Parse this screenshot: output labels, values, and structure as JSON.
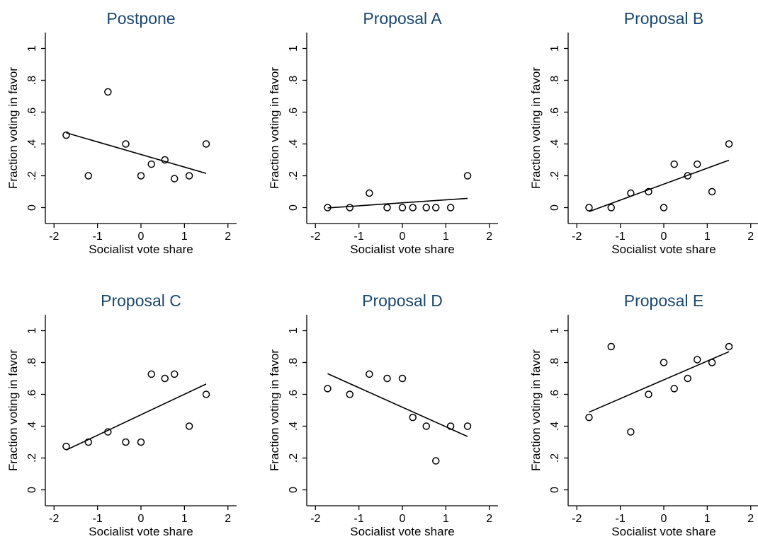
{
  "colors": {
    "title": "#1a476f",
    "marks": "#000000",
    "background": "#ffffff"
  },
  "chart_data": [
    {
      "type": "scatter",
      "title": "Postpone",
      "xlabel": "Socialist vote share",
      "ylabel": "Fraction voting in favor",
      "xlim": [
        -2,
        2
      ],
      "ylim": [
        0,
        1
      ],
      "x_ticks": [
        "-2",
        "-1",
        "0",
        "1",
        "2"
      ],
      "y_ticks": [
        "0",
        ".2",
        ".4",
        ".6",
        ".8",
        "1"
      ],
      "points": [
        [
          -1.72,
          0.455
        ],
        [
          -1.21,
          0.2
        ],
        [
          -0.76,
          0.727
        ],
        [
          -0.35,
          0.4
        ],
        [
          0.0,
          0.2
        ],
        [
          0.24,
          0.273
        ],
        [
          0.55,
          0.3
        ],
        [
          0.77,
          0.182
        ],
        [
          1.11,
          0.2
        ],
        [
          1.5,
          0.4
        ]
      ],
      "fit_line": [
        [
          -1.72,
          0.47
        ],
        [
          1.5,
          0.215
        ]
      ]
    },
    {
      "type": "scatter",
      "title": "Proposal A",
      "xlabel": "Socialist vote share",
      "ylabel": "Fraction voting in favor",
      "xlim": [
        -2,
        2
      ],
      "ylim": [
        0,
        1
      ],
      "x_ticks": [
        "-2",
        "-1",
        "0",
        "1",
        "2"
      ],
      "y_ticks": [
        "0",
        ".2",
        ".4",
        ".6",
        ".8",
        "1"
      ],
      "points": [
        [
          -1.72,
          0.0
        ],
        [
          -1.21,
          0.0
        ],
        [
          -0.76,
          0.091
        ],
        [
          -0.35,
          0.0
        ],
        [
          0.0,
          0.0
        ],
        [
          0.24,
          0.0
        ],
        [
          0.55,
          0.0
        ],
        [
          0.77,
          0.0
        ],
        [
          1.11,
          0.0
        ],
        [
          1.5,
          0.2
        ]
      ],
      "fit_line": [
        [
          -1.72,
          -0.002
        ],
        [
          1.5,
          0.058
        ]
      ]
    },
    {
      "type": "scatter",
      "title": "Proposal B",
      "xlabel": "Socialist vote share",
      "ylabel": "Fraction voting in favor",
      "xlim": [
        -2,
        2
      ],
      "ylim": [
        0,
        1
      ],
      "x_ticks": [
        "-2",
        "-1",
        "0",
        "1",
        "2"
      ],
      "y_ticks": [
        "0",
        ".2",
        ".4",
        ".6",
        ".8",
        "1"
      ],
      "points": [
        [
          -1.72,
          0.0
        ],
        [
          -1.21,
          0.0
        ],
        [
          -0.76,
          0.091
        ],
        [
          -0.35,
          0.1
        ],
        [
          0.0,
          0.0
        ],
        [
          0.24,
          0.273
        ],
        [
          0.55,
          0.2
        ],
        [
          0.77,
          0.273
        ],
        [
          1.11,
          0.1
        ],
        [
          1.5,
          0.4
        ]
      ],
      "fit_line": [
        [
          -1.72,
          -0.025
        ],
        [
          1.5,
          0.298
        ]
      ]
    },
    {
      "type": "scatter",
      "title": "Proposal C",
      "xlabel": "Socialist vote share",
      "ylabel": "Fraction voting in favor",
      "xlim": [
        -2,
        2
      ],
      "ylim": [
        0,
        1
      ],
      "x_ticks": [
        "-2",
        "-1",
        "0",
        "1",
        "2"
      ],
      "y_ticks": [
        "0",
        ".2",
        ".4",
        ".6",
        ".8",
        "1"
      ],
      "points": [
        [
          -1.72,
          0.273
        ],
        [
          -1.21,
          0.3
        ],
        [
          -0.76,
          0.364
        ],
        [
          -0.35,
          0.3
        ],
        [
          0.0,
          0.3
        ],
        [
          0.24,
          0.727
        ],
        [
          0.55,
          0.7
        ],
        [
          0.77,
          0.727
        ],
        [
          1.11,
          0.4
        ],
        [
          1.5,
          0.6
        ]
      ],
      "fit_line": [
        [
          -1.72,
          0.25
        ],
        [
          1.5,
          0.665
        ]
      ]
    },
    {
      "type": "scatter",
      "title": "Proposal D",
      "xlabel": "Socialist vote share",
      "ylabel": "Fraction voting in favor",
      "xlim": [
        -2,
        2
      ],
      "ylim": [
        0,
        1
      ],
      "x_ticks": [
        "-2",
        "-1",
        "0",
        "1",
        "2"
      ],
      "y_ticks": [
        "0",
        ".2",
        ".4",
        ".6",
        ".8",
        "1"
      ],
      "points": [
        [
          -1.72,
          0.636
        ],
        [
          -1.21,
          0.6
        ],
        [
          -0.76,
          0.727
        ],
        [
          -0.35,
          0.7
        ],
        [
          0.0,
          0.7
        ],
        [
          0.24,
          0.455
        ],
        [
          0.55,
          0.4
        ],
        [
          0.77,
          0.182
        ],
        [
          1.11,
          0.4
        ],
        [
          1.5,
          0.4
        ]
      ],
      "fit_line": [
        [
          -1.72,
          0.73
        ],
        [
          1.5,
          0.335
        ]
      ]
    },
    {
      "type": "scatter",
      "title": "Proposal E",
      "xlabel": "Socialist vote share",
      "ylabel": "Fraction voting in favor",
      "xlim": [
        -2,
        2
      ],
      "ylim": [
        0,
        1
      ],
      "x_ticks": [
        "-2",
        "-1",
        "0",
        "1",
        "2"
      ],
      "y_ticks": [
        "0",
        ".2",
        ".4",
        ".6",
        ".8",
        "1"
      ],
      "points": [
        [
          -1.72,
          0.455
        ],
        [
          -1.21,
          0.9
        ],
        [
          -0.76,
          0.364
        ],
        [
          -0.35,
          0.6
        ],
        [
          0.0,
          0.8
        ],
        [
          0.24,
          0.636
        ],
        [
          0.55,
          0.7
        ],
        [
          0.77,
          0.818
        ],
        [
          1.11,
          0.8
        ],
        [
          1.5,
          0.9
        ]
      ],
      "fit_line": [
        [
          -1.72,
          0.488
        ],
        [
          1.5,
          0.868
        ]
      ]
    }
  ]
}
